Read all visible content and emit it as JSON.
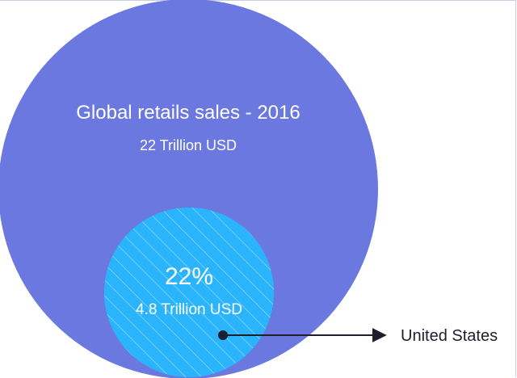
{
  "chart_data": {
    "type": "nested-circle",
    "outer": {
      "label": "Global retails sales - 2016",
      "value_label": "22 Trillion USD",
      "value": 22,
      "color": "#6a78e0"
    },
    "inner": {
      "percent_label": "22%",
      "value_label": "4.8 Trillion USD",
      "value": 4.8,
      "percent": 22,
      "color": "#2ab4fb",
      "pattern": "diagonal-stripes"
    },
    "callout": {
      "label": "United States",
      "color": "#1d1f2e"
    }
  }
}
